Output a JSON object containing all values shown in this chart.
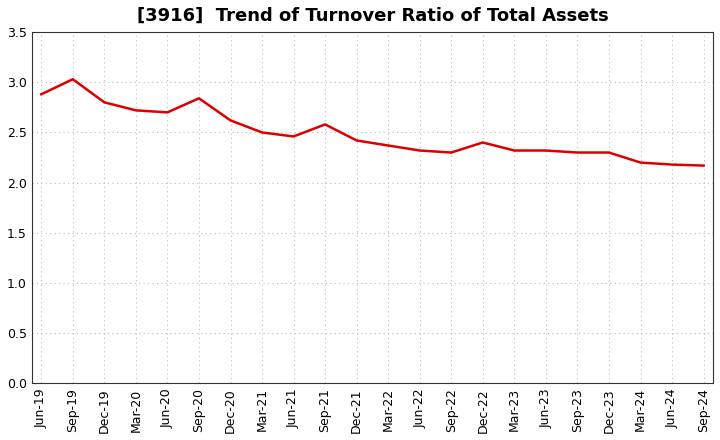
{
  "title": "[3916]  Trend of Turnover Ratio of Total Assets",
  "x_labels": [
    "Jun-19",
    "Sep-19",
    "Dec-19",
    "Mar-20",
    "Jun-20",
    "Sep-20",
    "Dec-20",
    "Mar-21",
    "Jun-21",
    "Sep-21",
    "Dec-21",
    "Mar-22",
    "Jun-22",
    "Sep-22",
    "Dec-22",
    "Mar-23",
    "Jun-23",
    "Sep-23",
    "Dec-23",
    "Mar-24",
    "Jun-24",
    "Sep-24"
  ],
  "values": [
    2.88,
    3.03,
    2.8,
    2.72,
    2.7,
    2.84,
    2.62,
    2.5,
    2.46,
    2.58,
    2.42,
    2.37,
    2.32,
    2.3,
    2.4,
    2.32,
    2.32,
    2.3,
    2.3,
    2.2,
    2.18,
    2.17
  ],
  "line_color": "#dd0000",
  "background_color": "#ffffff",
  "plot_bg_color": "#ffffff",
  "grid_color": "#bbbbbb",
  "ylim": [
    0.0,
    3.5
  ],
  "yticks": [
    0.0,
    0.5,
    1.0,
    1.5,
    2.0,
    2.5,
    3.0,
    3.5
  ],
  "title_fontsize": 13,
  "tick_fontsize": 9
}
